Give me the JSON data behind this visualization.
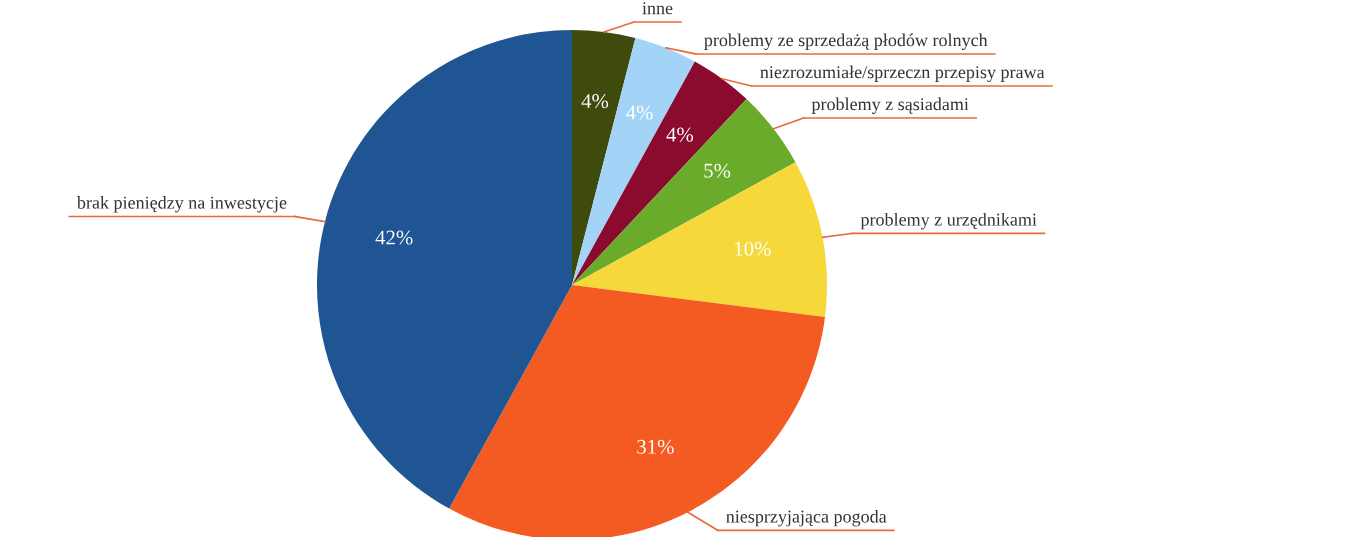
{
  "chart_data": {
    "type": "pie",
    "categories": [
      "inne",
      "problemy ze sprzedażą płodów rolnych",
      "niezrozumiałe/sprzeczn przepisy prawa",
      "problemy z sąsiadami",
      "problemy z urzędnikami",
      "niesprzyjająca pogoda",
      "brak pieniędzy na inwestycje"
    ],
    "values": [
      4,
      4,
      4,
      5,
      10,
      31,
      42
    ],
    "value_labels": [
      "4%",
      "4%",
      "4%",
      "5%",
      "10%",
      "31%",
      "42%"
    ],
    "colors": [
      "#3e4b0c",
      "#a3d4f8",
      "#8a0b2e",
      "#6aab2b",
      "#f6d83b",
      "#f45b22",
      "#1f5593"
    ],
    "legend": false
  }
}
